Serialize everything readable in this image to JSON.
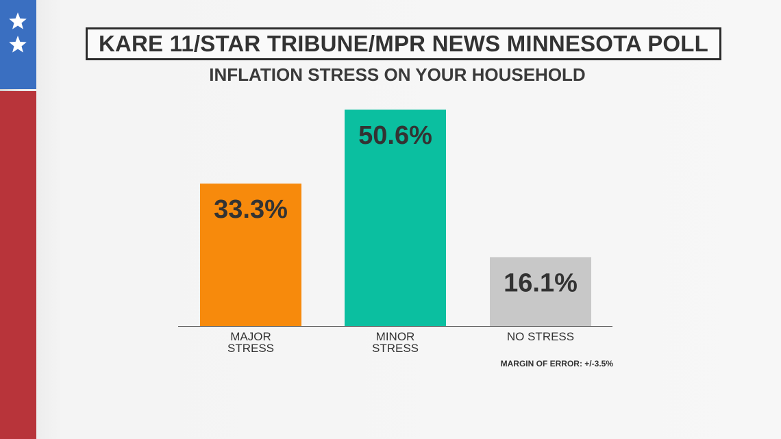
{
  "header": {
    "title": "KARE 11/STAR TRIBUNE/MPR NEWS MINNESOTA POLL"
  },
  "colors": {
    "flag_blue": "#3a6fc1",
    "flag_red": "#b8343a",
    "star": "#ffffff"
  },
  "chart_data": {
    "type": "bar",
    "title": "INFLATION STRESS ON YOUR HOUSEHOLD",
    "categories": [
      [
        "MAJOR",
        "STRESS"
      ],
      [
        "MINOR",
        "STRESS"
      ],
      [
        "NO STRESS"
      ]
    ],
    "values": [
      33.3,
      50.6,
      16.1
    ],
    "value_labels": [
      "33.3%",
      "50.6%",
      "16.1%"
    ],
    "colors": [
      "#f78a0c",
      "#0bbfa0",
      "#c8c8c8"
    ],
    "ylim": [
      0,
      50.6
    ],
    "grid": false,
    "legend": "none",
    "note": "MARGIN OF ERROR: +/-3.5%"
  }
}
